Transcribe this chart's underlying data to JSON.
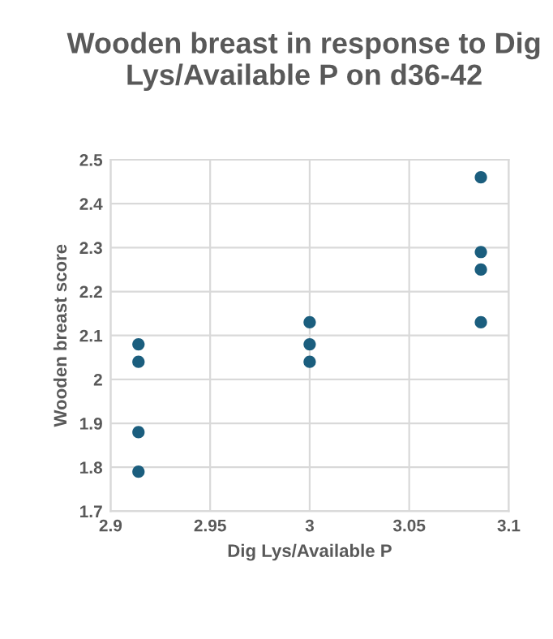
{
  "chart_data": {
    "type": "scatter",
    "title": "Wooden breast in response to Dig Lys/Available P on d36-42",
    "xlabel": "Dig Lys/Available P",
    "ylabel": "Wooden breast score",
    "series": [
      {
        "color": "#1b5e7e",
        "x": [
          2.914,
          2.914,
          2.914,
          2.914,
          3.0,
          3.0,
          3.0,
          3.086,
          3.086,
          3.086,
          3.086
        ],
        "values": [
          2.08,
          2.04,
          1.88,
          1.79,
          2.13,
          2.08,
          2.04,
          2.46,
          2.29,
          2.25,
          2.13
        ]
      }
    ],
    "xlim": [
      2.9,
      3.1
    ],
    "xticks": [
      2.9,
      2.95,
      3,
      3.05,
      3.1
    ],
    "ylim": [
      1.7,
      2.5
    ],
    "yticks": [
      1.7,
      1.8,
      1.9,
      2,
      2.1,
      2.2,
      2.3,
      2.4,
      2.5
    ],
    "grid": true,
    "marker": "circle"
  }
}
